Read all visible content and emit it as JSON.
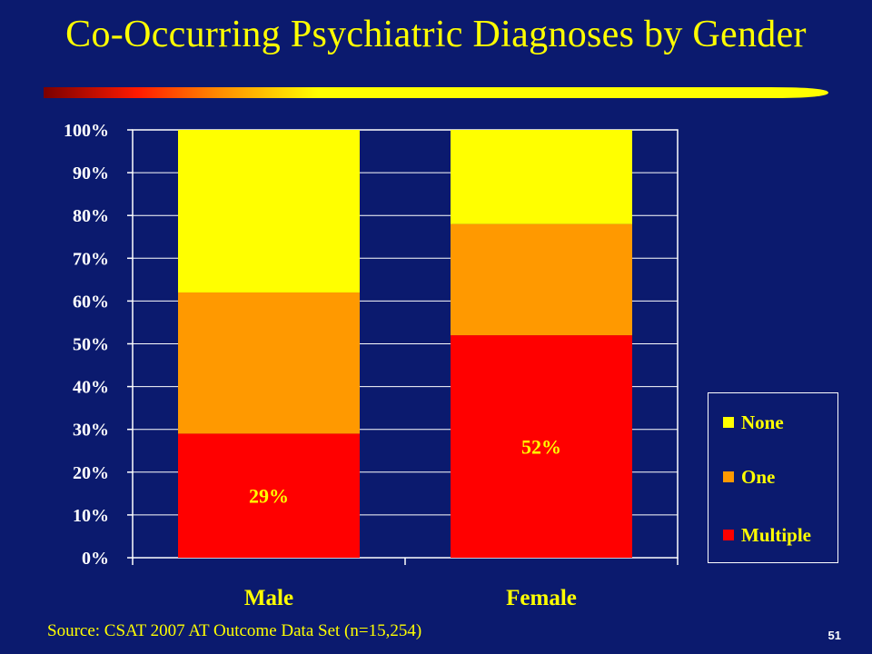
{
  "slide": {
    "title": "Co-Occurring Psychiatric Diagnoses by Gender",
    "source": "Source:  CSAT 2007 AT Outcome Data Set (n=15,254)",
    "page_number": "51"
  },
  "colors": {
    "background": "#0b1a6e",
    "text": "#ffff00",
    "none": "#ffff00",
    "one": "#ff9900",
    "multiple": "#ff0000"
  },
  "chart_data": {
    "type": "bar",
    "stacked": true,
    "categories": [
      "Male",
      "Female"
    ],
    "series": [
      {
        "name": "Multiple",
        "values": [
          29,
          52
        ],
        "color": "#ff0000"
      },
      {
        "name": "One",
        "values": [
          33,
          26
        ],
        "color": "#ff9900"
      },
      {
        "name": "None",
        "values": [
          38,
          22
        ],
        "color": "#ffff00"
      }
    ],
    "data_labels": [
      {
        "series": "Multiple",
        "category": "Male",
        "text": "29%"
      },
      {
        "series": "Multiple",
        "category": "Female",
        "text": "52%"
      }
    ],
    "y_ticks": [
      "0%",
      "10%",
      "20%",
      "30%",
      "40%",
      "50%",
      "60%",
      "70%",
      "80%",
      "90%",
      "100%"
    ],
    "ylim": [
      0,
      100
    ],
    "grid": true,
    "legend": {
      "placement": "right",
      "items": [
        "None",
        "One",
        "Multiple"
      ]
    }
  }
}
